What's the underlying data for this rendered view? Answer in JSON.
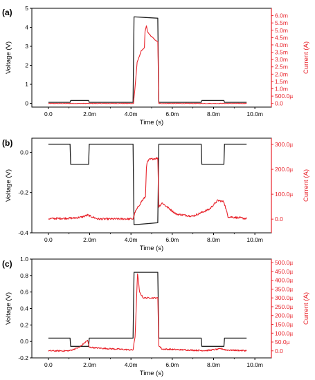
{
  "chart_data": [
    {
      "panel_label": "(a)",
      "type": "line",
      "xlabel": "Time (s)",
      "ylabel_left": "Voltage (V)",
      "ylabel_right": "Current (A)",
      "xlim": [
        -0.0008,
        0.0108
      ],
      "ylim_left": [
        -0.2,
        5.0
      ],
      "ylim_right": [
        -0.00025,
        0.0065
      ],
      "x_ticks": [
        0,
        0.002,
        0.004,
        0.006,
        0.008,
        0.01
      ],
      "x_tick_labels": [
        "0.0",
        "2.0m",
        "4.0m",
        "6.0m",
        "8.0m",
        "10.0m"
      ],
      "y_left_ticks": [
        0,
        1,
        2,
        3,
        4,
        5
      ],
      "y_left_tick_labels": [
        "0",
        "1",
        "2",
        "3",
        "4",
        "5"
      ],
      "y_right_ticks": [
        0,
        0.0005,
        0.001,
        0.0015,
        0.002,
        0.0025,
        0.003,
        0.0035,
        0.004,
        0.0045,
        0.005,
        0.0055,
        0.006
      ],
      "y_right_tick_labels": [
        "0.0",
        "500.0µ",
        "1.0m",
        "1.5m",
        "2.0m",
        "2.5m",
        "3.0m",
        "3.5m",
        "4.0m",
        "4.5m",
        "5.0m",
        "5.5m",
        "6.0m"
      ],
      "series": [
        {
          "axis": "left",
          "color": "#222222",
          "noise": 0,
          "x": [
            0,
            0.00105,
            0.00108,
            0.00195,
            0.00198,
            0.0041,
            0.00415,
            0.0053,
            0.00535,
            0.0074,
            0.00743,
            0.0085,
            0.00853,
            0.0096
          ],
          "y": [
            0.05,
            0.05,
            0.15,
            0.15,
            0.05,
            0.05,
            4.55,
            4.48,
            0.05,
            0.05,
            0.15,
            0.15,
            0.05,
            0.05
          ]
        },
        {
          "axis": "right",
          "color": "#e8222a",
          "noise": 2e-05,
          "x": [
            0,
            0.00412,
            0.00418,
            0.0043,
            0.0045,
            0.00465,
            0.00468,
            0.00475,
            0.0048,
            0.0049,
            0.0052,
            0.0053,
            0.00535,
            0.0096
          ],
          "y": [
            0,
            0,
            0.0008,
            0.0028,
            0.0036,
            0.0038,
            0.0049,
            0.0053,
            0.0049,
            0.0047,
            0.0043,
            0.0042,
            0,
            0
          ]
        }
      ]
    },
    {
      "panel_label": "(b)",
      "type": "line",
      "xlabel": "Time (s)",
      "ylabel_left": "Voltage (V)",
      "ylabel_right": "Current (A)",
      "xlim": [
        -0.0008,
        0.0108
      ],
      "ylim_left": [
        -0.4,
        0.07
      ],
      "ylim_right": [
        -5.5e-05,
        0.000325
      ],
      "x_ticks": [
        0,
        0.002,
        0.004,
        0.006,
        0.008,
        0.01
      ],
      "x_tick_labels": [
        "0.0",
        "2.0m",
        "4.0m",
        "6.0m",
        "8.0m",
        "10.0m"
      ],
      "y_left_ticks": [
        -0.4,
        -0.2,
        0.0
      ],
      "y_left_tick_labels": [
        "-0.4",
        "-0.2",
        "0.0"
      ],
      "y_right_ticks": [
        0,
        0.0001,
        0.0002,
        0.0003
      ],
      "y_right_tick_labels": [
        "0.0",
        "100.0µ",
        "200.0µ",
        "300.0µ"
      ],
      "series": [
        {
          "axis": "left",
          "color": "#222222",
          "noise": 0,
          "x": [
            0,
            0.00105,
            0.00108,
            0.00195,
            0.00198,
            0.0041,
            0.00415,
            0.0053,
            0.00535,
            0.0074,
            0.00743,
            0.0085,
            0.00853,
            0.0096
          ],
          "y": [
            0.04,
            0.04,
            -0.06,
            -0.06,
            0.04,
            0.04,
            -0.36,
            -0.35,
            0.04,
            0.04,
            -0.06,
            -0.06,
            0.04,
            0.04
          ]
        },
        {
          "axis": "right",
          "color": "#e8222a",
          "noise": 4e-06,
          "x": [
            0,
            0.0012,
            0.0016,
            0.0019,
            0.0024,
            0.0041,
            0.0042,
            0.0045,
            0.0047,
            0.00475,
            0.0048,
            0.0049,
            0.0053,
            0.00535,
            0.0055,
            0.0062,
            0.007,
            0.0078,
            0.0082,
            0.0085,
            0.0087,
            0.0096
          ],
          "y": [
            2e-06,
            4e-06,
            8e-06,
            1.6e-05,
            5e-07,
            1e-06,
            2.8e-05,
            7e-05,
            9e-05,
            0.00021,
            0.00023,
            0.00024,
            0.000245,
            5e-05,
            6.5e-05,
            2e-05,
            1.2e-05,
            4e-05,
            7.5e-05,
            7e-05,
            1e-05,
            2e-06
          ]
        }
      ]
    },
    {
      "panel_label": "(c)",
      "type": "line",
      "xlabel": "Time (s)",
      "ylabel_left": "Voltage (V)",
      "ylabel_right": "Current (A)",
      "xlim": [
        -0.0008,
        0.0108
      ],
      "ylim_left": [
        -0.2,
        1.0
      ],
      "ylim_right": [
        -4e-05,
        0.00052
      ],
      "x_ticks": [
        0,
        0.002,
        0.004,
        0.006,
        0.008,
        0.01
      ],
      "x_tick_labels": [
        "0.0",
        "2.0m",
        "4.0m",
        "6.0m",
        "8.0m",
        "10.0m"
      ],
      "y_left_ticks": [
        -0.2,
        0.0,
        0.2,
        0.4,
        0.6,
        0.8,
        1.0
      ],
      "y_left_tick_labels": [
        "-0.2",
        "0.0",
        "0.2",
        "0.4",
        "0.6",
        "0.8",
        "1.0"
      ],
      "y_right_ticks": [
        0,
        5e-05,
        0.0001,
        0.00015,
        0.0002,
        0.00025,
        0.0003,
        0.00035,
        0.0004,
        0.00045,
        0.0005
      ],
      "y_right_tick_labels": [
        "0.0",
        "50.0µ",
        "100.0µ",
        "150.0µ",
        "200.0µ",
        "250.0µ",
        "300.0µ",
        "350.0µ",
        "400.0µ",
        "450.0µ",
        "500.0µ"
      ],
      "series": [
        {
          "axis": "left",
          "color": "#222222",
          "noise": 0,
          "x": [
            0,
            0.00105,
            0.00108,
            0.00195,
            0.00198,
            0.0041,
            0.00415,
            0.0053,
            0.00535,
            0.0074,
            0.00743,
            0.0085,
            0.00853,
            0.0096
          ],
          "y": [
            0.04,
            0.04,
            -0.06,
            -0.06,
            0.04,
            0.04,
            0.84,
            0.84,
            0.04,
            0.04,
            -0.06,
            -0.06,
            0.04,
            0.04
          ]
        },
        {
          "axis": "right",
          "color": "#e8222a",
          "noise": 4e-06,
          "x": [
            0,
            0.00095,
            0.00105,
            0.0015,
            0.0019,
            0.00198,
            0.0025,
            0.0041,
            0.0042,
            0.00432,
            0.00442,
            0.0046,
            0.0053,
            0.00535,
            0.0055,
            0.0074,
            0.0077,
            0.0084,
            0.0086,
            0.0096
          ],
          "y": [
            0,
            0,
            2e-06,
            2e-05,
            6e-05,
            2e-05,
            1.5e-05,
            5e-06,
            8e-05,
            0.00044,
            0.00033,
            0.0003,
            0.0003,
            3e-05,
            1e-05,
            2e-06,
            2e-06,
            1.2e-05,
            5e-06,
            1e-06
          ]
        }
      ]
    }
  ]
}
